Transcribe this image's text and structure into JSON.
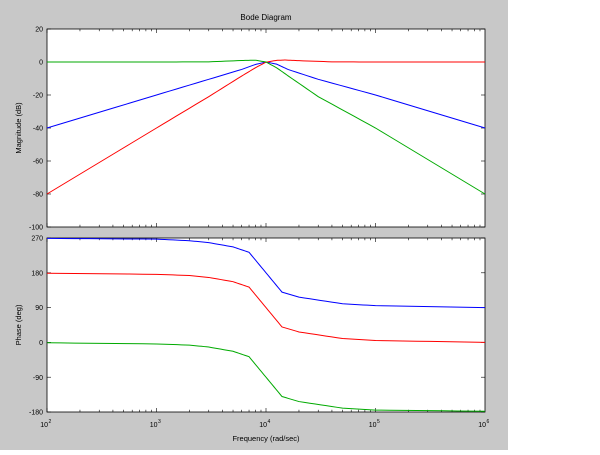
{
  "chart_data": {
    "type": "line",
    "title": "Bode Diagram",
    "xlabel": "Frequency  (rad/sec)",
    "x_scale": "log",
    "xlim": [
      100,
      1000000
    ],
    "x_ticks": [
      {
        "value": 100,
        "base": "10",
        "exp": "2"
      },
      {
        "value": 1000,
        "base": "10",
        "exp": "3"
      },
      {
        "value": 10000,
        "base": "10",
        "exp": "4"
      },
      {
        "value": 100000,
        "base": "10",
        "exp": "5"
      },
      {
        "value": 1000000,
        "base": "10",
        "exp": "6"
      }
    ],
    "panels": [
      {
        "name": "magnitude",
        "ylabel": "Magnitude (dB)",
        "ylim": [
          -100,
          20
        ],
        "y_ticks": [
          "-100",
          "-80",
          "-60",
          "-40",
          "-20",
          "0",
          "20"
        ],
        "series": [
          {
            "color": "#0000ff",
            "points": [
              [
                100,
                -40
              ],
              [
                1000,
                -20
              ],
              [
                3000,
                -10.5
              ],
              [
                6000,
                -4.5
              ],
              [
                8000,
                -1.5
              ],
              [
                10000,
                0
              ],
              [
                12500,
                -1.3
              ],
              [
                16000,
                -4.6
              ],
              [
                30000,
                -10.5
              ],
              [
                100000,
                -20
              ],
              [
                1000000,
                -40
              ]
            ]
          },
          {
            "color": "#ff0000",
            "points": [
              [
                100,
                -80
              ],
              [
                1000,
                -40
              ],
              [
                3000,
                -21
              ],
              [
                6000,
                -8.5
              ],
              [
                8000,
                -3.5
              ],
              [
                10000,
                -0.1
              ],
              [
                12500,
                1
              ],
              [
                15000,
                1.2
              ],
              [
                20000,
                0.8
              ],
              [
                40000,
                0.1
              ],
              [
                100000,
                0
              ],
              [
                1000000,
                0
              ]
            ]
          },
          {
            "color": "#00aa00",
            "points": [
              [
                100,
                0
              ],
              [
                1000,
                0
              ],
              [
                3000,
                0.1
              ],
              [
                6000,
                0.9
              ],
              [
                8000,
                1.1
              ],
              [
                10000,
                0
              ],
              [
                12500,
                -3.5
              ],
              [
                16000,
                -8.5
              ],
              [
                30000,
                -21
              ],
              [
                100000,
                -40
              ],
              [
                1000000,
                -80
              ]
            ]
          }
        ]
      },
      {
        "name": "phase",
        "ylabel": "Phase (deg)",
        "ylim": [
          -180,
          270
        ],
        "y_ticks": [
          "-180",
          "-90",
          "0",
          "90",
          "180",
          "270"
        ],
        "series": [
          {
            "color": "#0000ff",
            "points": [
              [
                100,
                269
              ],
              [
                1000,
                267
              ],
              [
                2000,
                263
              ],
              [
                3000,
                258
              ],
              [
                5000,
                247
              ],
              [
                7000,
                233
              ],
              [
                10000,
                180
              ],
              [
                14000,
                130
              ],
              [
                20000,
                117
              ],
              [
                50000,
                100
              ],
              [
                100000,
                95
              ],
              [
                1000000,
                90
              ]
            ]
          },
          {
            "color": "#ff0000",
            "points": [
              [
                100,
                179
              ],
              [
                1000,
                176
              ],
              [
                2000,
                173
              ],
              [
                3000,
                168
              ],
              [
                5000,
                157
              ],
              [
                7000,
                143
              ],
              [
                10000,
                90
              ],
              [
                14000,
                40
              ],
              [
                20000,
                27
              ],
              [
                50000,
                10
              ],
              [
                100000,
                5
              ],
              [
                1000000,
                0
              ]
            ]
          },
          {
            "color": "#00aa00",
            "points": [
              [
                100,
                -1
              ],
              [
                1000,
                -4
              ],
              [
                2000,
                -7
              ],
              [
                3000,
                -12
              ],
              [
                5000,
                -23
              ],
              [
                7000,
                -37
              ],
              [
                10000,
                -90
              ],
              [
                14000,
                -140
              ],
              [
                20000,
                -153
              ],
              [
                50000,
                -170
              ],
              [
                100000,
                -175
              ],
              [
                1000000,
                -178
              ]
            ]
          }
        ]
      }
    ]
  }
}
